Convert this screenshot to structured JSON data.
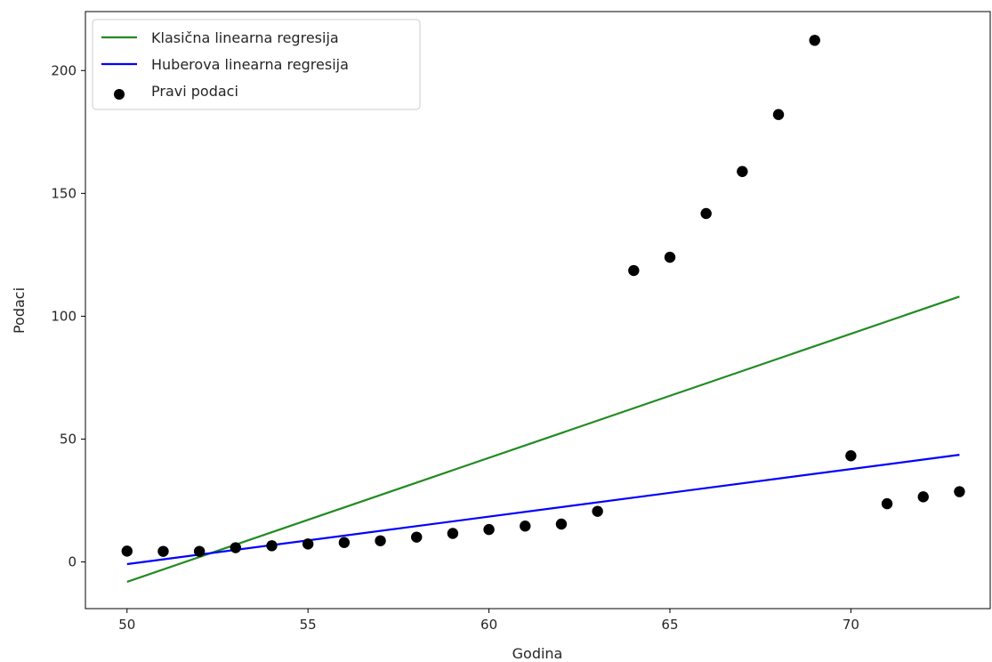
{
  "chart_data": {
    "type": "scatter",
    "xlabel": "Godina",
    "ylabel": "Podaci",
    "xlim": [
      48.85,
      73.85
    ],
    "ylim": [
      -19,
      224
    ],
    "xticks": [
      50,
      55,
      60,
      65,
      70
    ],
    "yticks": [
      0,
      50,
      100,
      150,
      200
    ],
    "grid": false,
    "legend": {
      "placement": "top-left",
      "entries": [
        {
          "label": "Klasična linearna regresija",
          "kind": "line",
          "color": "#228b22"
        },
        {
          "label": "Huberova linearna regresija",
          "kind": "line",
          "color": "#0000ff"
        },
        {
          "label": "Pravi podaci",
          "kind": "marker",
          "color": "#000000"
        }
      ]
    },
    "series": [
      {
        "name": "Pravi podaci",
        "kind": "scatter",
        "color": "#000000",
        "points": [
          {
            "x": 50,
            "y": 4.4
          },
          {
            "x": 51,
            "y": 4.3
          },
          {
            "x": 52,
            "y": 4.3
          },
          {
            "x": 53,
            "y": 5.8
          },
          {
            "x": 54,
            "y": 6.6
          },
          {
            "x": 55,
            "y": 7.3
          },
          {
            "x": 56,
            "y": 7.9
          },
          {
            "x": 57,
            "y": 8.6
          },
          {
            "x": 58,
            "y": 10.1
          },
          {
            "x": 59,
            "y": 11.6
          },
          {
            "x": 60,
            "y": 13.2
          },
          {
            "x": 61,
            "y": 14.6
          },
          {
            "x": 62,
            "y": 15.4
          },
          {
            "x": 63,
            "y": 20.6
          },
          {
            "x": 64,
            "y": 118.6
          },
          {
            "x": 65,
            "y": 124.0
          },
          {
            "x": 66,
            "y": 141.8
          },
          {
            "x": 67,
            "y": 158.9
          },
          {
            "x": 68,
            "y": 182.1
          },
          {
            "x": 69,
            "y": 212.3
          },
          {
            "x": 70,
            "y": 43.2
          },
          {
            "x": 71,
            "y": 23.7
          },
          {
            "x": 72,
            "y": 26.5
          },
          {
            "x": 73,
            "y": 28.6
          }
        ]
      },
      {
        "name": "Klasična linearna regresija",
        "kind": "line",
        "color": "#228b22",
        "points": [
          {
            "x": 50,
            "y": -8.1
          },
          {
            "x": 73,
            "y": 108.0
          }
        ]
      },
      {
        "name": "Huberova linearna regresija",
        "kind": "line",
        "color": "#0000ff",
        "points": [
          {
            "x": 50,
            "y": -0.9
          },
          {
            "x": 73,
            "y": 43.6
          }
        ]
      }
    ]
  }
}
